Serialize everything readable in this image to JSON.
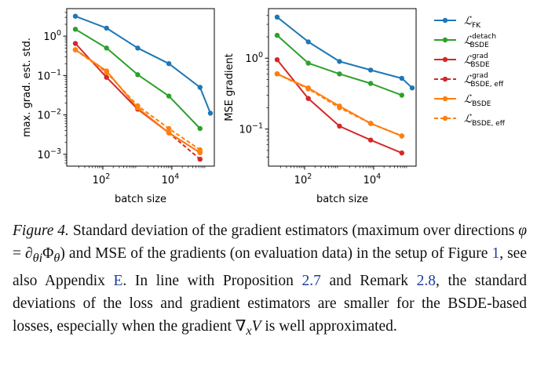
{
  "chart_data": [
    {
      "type": "line",
      "xscale": "log",
      "yscale": "log",
      "ylabel": "max. grad. est. std.",
      "xlabel": "batch size",
      "xlim": [
        9,
        170000
      ],
      "ylim": [
        0.0005,
        5
      ],
      "xticks": [
        {
          "value": 100,
          "base": "10",
          "exp": "2"
        },
        {
          "value": 10000,
          "base": "10",
          "exp": "4"
        }
      ],
      "yticks": [
        {
          "value": 1,
          "base": "10",
          "exp": "0"
        },
        {
          "value": 0.1,
          "base": "10",
          "exp": "−1"
        },
        {
          "value": 0.01,
          "base": "10",
          "exp": "−2"
        },
        {
          "value": 0.001,
          "base": "10",
          "exp": "−3"
        }
      ],
      "series": [
        {
          "key": "fk",
          "x": [
            16,
            128,
            1024,
            8192,
            65536,
            131072
          ],
          "y": [
            3.2,
            1.6,
            0.5,
            0.2,
            0.05,
            0.011
          ]
        },
        {
          "key": "bsde_detach",
          "x": [
            16,
            128,
            1024,
            8192,
            65536
          ],
          "y": [
            1.5,
            0.5,
            0.105,
            0.03,
            0.0045
          ]
        },
        {
          "key": "bsde_grad",
          "x": [
            16,
            128,
            1024,
            8192,
            65536
          ],
          "y": [
            0.65,
            0.09,
            0.014,
            0.0035,
            0.0011
          ]
        },
        {
          "key": "bsde_grad_eff",
          "x": [
            16,
            128,
            1024,
            8192,
            65536
          ],
          "y": [
            0.45,
            0.13,
            0.015,
            0.0035,
            0.00075
          ]
        },
        {
          "key": "bsde",
          "x": [
            16,
            128,
            1024,
            8192,
            65536
          ],
          "y": [
            0.45,
            0.13,
            0.015,
            0.0035,
            0.0011
          ]
        },
        {
          "key": "bsde_eff",
          "x": [
            16,
            128,
            1024,
            8192,
            65536
          ],
          "y": [
            0.45,
            0.12,
            0.017,
            0.0045,
            0.0013
          ]
        }
      ]
    },
    {
      "type": "line",
      "xscale": "log",
      "yscale": "log",
      "ylabel": "MSE gradient",
      "xlabel": "batch size",
      "xlim": [
        9,
        170000
      ],
      "ylim": [
        0.03,
        5
      ],
      "xticks": [
        {
          "value": 100,
          "base": "10",
          "exp": "2"
        },
        {
          "value": 10000,
          "base": "10",
          "exp": "4"
        }
      ],
      "yticks": [
        {
          "value": 1,
          "base": "10",
          "exp": "0"
        },
        {
          "value": 0.1,
          "base": "10",
          "exp": "−1"
        }
      ],
      "series": [
        {
          "key": "fk",
          "x": [
            16,
            128,
            1024,
            8192,
            65536,
            131072
          ],
          "y": [
            3.8,
            1.7,
            0.9,
            0.68,
            0.52,
            0.38
          ]
        },
        {
          "key": "bsde_detach",
          "x": [
            16,
            128,
            1024,
            8192,
            65536
          ],
          "y": [
            2.1,
            0.85,
            0.6,
            0.44,
            0.3
          ]
        },
        {
          "key": "bsde_grad",
          "x": [
            16,
            128,
            1024,
            8192,
            65536
          ],
          "y": [
            0.95,
            0.27,
            0.11,
            0.07,
            0.046
          ]
        },
        {
          "key": "bsde_grad_eff",
          "x": [
            16,
            128,
            1024,
            8192,
            65536
          ],
          "y": [
            0.6,
            0.37,
            0.21,
            0.12,
            0.08
          ]
        },
        {
          "key": "bsde",
          "x": [
            16,
            128,
            1024,
            8192,
            65536
          ],
          "y": [
            0.6,
            0.38,
            0.21,
            0.12,
            0.08
          ]
        },
        {
          "key": "bsde_eff",
          "x": [
            16,
            128,
            1024,
            8192,
            65536
          ],
          "y": [
            0.6,
            0.37,
            0.2,
            0.12,
            0.08
          ]
        }
      ]
    }
  ],
  "legend": [
    {
      "key": "fk",
      "sub": "FK",
      "sup": "",
      "color": "#1f77b4",
      "dashed": false
    },
    {
      "key": "bsde_detach",
      "sub": "BSDE",
      "sup": "detach",
      "color": "#2ca02c",
      "dashed": false
    },
    {
      "key": "bsde_grad",
      "sub": "BSDE",
      "sup": "grad",
      "color": "#d62728",
      "dashed": false
    },
    {
      "key": "bsde_grad_eff",
      "sub": "BSDE, eff",
      "sup": "grad",
      "color": "#d62728",
      "dashed": true
    },
    {
      "key": "bsde",
      "sub": "BSDE",
      "sup": "",
      "color": "#ff7f0e",
      "dashed": false
    },
    {
      "key": "bsde_eff",
      "sub": "BSDE, eff",
      "sup": "",
      "color": "#ff7f0e",
      "dashed": true
    }
  ],
  "caption": {
    "label": "Figure 4.",
    "t1": " Standard deviation of the gradient estimators (maximum over directions ",
    "m_phi": "φ",
    "m_eq": " = ∂",
    "m_theta_i": "θi",
    "m_Phi": "Φ",
    "m_theta": "θ",
    "t2": ") and MSE of the gradients (on evaluation data) in the setup of Figure ",
    "ref_fig": "1",
    "t3": ", see also Appendix ",
    "ref_app": "E",
    "t4": ". In line with Proposition ",
    "ref_prop": "2.7",
    "t5": " and Remark ",
    "ref_rem": "2.8",
    "t6": ", the standard deviations of the loss and gradient estimators are smaller for the BSDE-based losses, especially when the gradient ",
    "m_grad": "∇",
    "m_x": "x",
    "m_V": "V",
    "t7": " is well approximated."
  }
}
